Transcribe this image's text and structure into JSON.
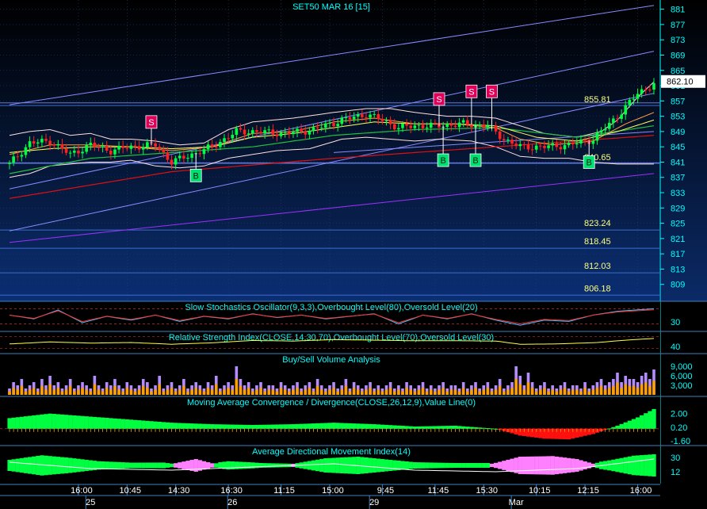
{
  "chart_data": {
    "type": "candlestick",
    "title": "SET50 MAR 16   [15]",
    "last_price": "862.10",
    "ylim": [
      805,
      883
    ],
    "y_ticks": [
      "881",
      "877",
      "873",
      "869",
      "865",
      "861",
      "857",
      "853",
      "849",
      "845",
      "841",
      "837",
      "833",
      "829",
      "825",
      "821",
      "817",
      "813",
      "809"
    ],
    "levels": [
      {
        "label": "855.81",
        "value": 855.81
      },
      {
        "label": "840.65",
        "value": 840.65
      },
      {
        "label": "823.24",
        "value": 823.24
      },
      {
        "label": "818.45",
        "value": 818.45
      },
      {
        "label": "812.03",
        "value": 812.03
      },
      {
        "label": "806.18",
        "value": 806.18
      }
    ],
    "signals": [
      {
        "type": "S",
        "bar": 35,
        "price": 851.5
      },
      {
        "type": "B",
        "bar": 46,
        "price": 837.5
      },
      {
        "type": "S",
        "bar": 106,
        "price": 857.5
      },
      {
        "type": "S",
        "bar": 114,
        "price": 859.5
      },
      {
        "type": "S",
        "bar": 119,
        "price": 859.5
      },
      {
        "type": "B",
        "bar": 107,
        "price": 841.5
      },
      {
        "type": "B",
        "bar": 115,
        "price": 841.5
      },
      {
        "type": "B",
        "bar": 143,
        "price": 841.0
      }
    ],
    "x_labels": [
      {
        "label": "16:00",
        "bar": 17
      },
      {
        "label": "10:45",
        "bar": 29
      },
      {
        "label": "14:30",
        "bar": 41
      },
      {
        "label": "16:30",
        "bar": 54
      },
      {
        "label": "11:15",
        "bar": 67
      },
      {
        "label": "15:00",
        "bar": 79
      },
      {
        "label": "9:45",
        "bar": 92
      },
      {
        "label": "11:45",
        "bar": 105
      },
      {
        "label": "15:30",
        "bar": 117
      },
      {
        "label": "10:15",
        "bar": 130
      },
      {
        "label": "12:15",
        "bar": 142
      },
      {
        "label": "16:00",
        "bar": 155
      }
    ],
    "date_labels": [
      {
        "label": "25",
        "bar": 20
      },
      {
        "label": "26",
        "bar": 55
      },
      {
        "label": "29",
        "bar": 90
      },
      {
        "label": "Mar",
        "bar": 125
      }
    ],
    "price_path": [
      [
        0,
        840.5
      ],
      [
        5,
        846
      ],
      [
        10,
        846.5
      ],
      [
        15,
        843
      ],
      [
        20,
        845.5
      ],
      [
        25,
        844
      ],
      [
        30,
        845
      ],
      [
        36,
        845.5
      ],
      [
        40,
        841
      ],
      [
        45,
        843
      ],
      [
        50,
        845
      ],
      [
        56,
        849
      ],
      [
        60,
        849
      ],
      [
        68,
        848.5
      ],
      [
        75,
        849.5
      ],
      [
        82,
        852
      ],
      [
        88,
        853.5
      ],
      [
        92,
        852
      ],
      [
        96,
        850
      ],
      [
        100,
        850.5
      ],
      [
        106,
        850.5
      ],
      [
        112,
        851
      ],
      [
        118,
        850.5
      ],
      [
        122,
        847
      ],
      [
        126,
        845
      ],
      [
        132,
        845
      ],
      [
        138,
        845.5
      ],
      [
        144,
        847
      ],
      [
        150,
        853
      ],
      [
        155,
        859
      ],
      [
        159,
        861.5
      ]
    ],
    "bands": {
      "upper_path": [
        [
          0,
          848
        ],
        [
          5,
          849
        ],
        [
          10,
          849.5
        ],
        [
          15,
          848
        ],
        [
          20,
          848.5
        ],
        [
          25,
          847
        ],
        [
          30,
          847
        ],
        [
          36,
          846.5
        ],
        [
          42,
          845.5
        ],
        [
          48,
          846
        ],
        [
          54,
          849.5
        ],
        [
          60,
          851.5
        ],
        [
          70,
          852.5
        ],
        [
          80,
          854
        ],
        [
          88,
          855
        ],
        [
          94,
          855
        ],
        [
          100,
          854
        ],
        [
          108,
          853
        ],
        [
          114,
          853
        ],
        [
          120,
          852.5
        ],
        [
          126,
          850.5
        ],
        [
          132,
          848.5
        ],
        [
          140,
          847.5
        ],
        [
          146,
          849
        ],
        [
          150,
          852
        ],
        [
          155,
          858
        ],
        [
          159,
          862
        ]
      ],
      "lower_path": [
        [
          0,
          837
        ],
        [
          5,
          838
        ],
        [
          10,
          840
        ],
        [
          15,
          840.5
        ],
        [
          20,
          841
        ],
        [
          25,
          841
        ],
        [
          30,
          841.5
        ],
        [
          36,
          840
        ],
        [
          42,
          839.5
        ],
        [
          48,
          840
        ],
        [
          54,
          842
        ],
        [
          60,
          843
        ],
        [
          66,
          844
        ],
        [
          74,
          844.5
        ],
        [
          82,
          847
        ],
        [
          88,
          847.5
        ],
        [
          94,
          847
        ],
        [
          100,
          846.5
        ],
        [
          106,
          847
        ],
        [
          114,
          846.5
        ],
        [
          120,
          845
        ],
        [
          126,
          842.5
        ],
        [
          132,
          842
        ],
        [
          138,
          842
        ],
        [
          144,
          841
        ],
        [
          150,
          840.5
        ],
        [
          155,
          840.5
        ],
        [
          159,
          840.5
        ]
      ]
    },
    "ma_fast": [
      [
        0,
        843
      ],
      [
        10,
        845.5
      ],
      [
        20,
        845.5
      ],
      [
        30,
        845
      ],
      [
        40,
        844
      ],
      [
        50,
        845
      ],
      [
        60,
        848.5
      ],
      [
        70,
        849
      ],
      [
        80,
        851.5
      ],
      [
        90,
        852.5
      ],
      [
        100,
        851
      ],
      [
        110,
        851
      ],
      [
        120,
        850
      ],
      [
        126,
        847
      ],
      [
        134,
        845.5
      ],
      [
        144,
        846.5
      ],
      [
        152,
        851
      ],
      [
        159,
        854
      ]
    ],
    "ma_mid": [
      [
        0,
        843.5
      ],
      [
        10,
        844.5
      ],
      [
        20,
        845
      ],
      [
        30,
        845
      ],
      [
        40,
        844.5
      ],
      [
        50,
        845
      ],
      [
        60,
        847.5
      ],
      [
        70,
        848.5
      ],
      [
        80,
        850
      ],
      [
        90,
        851.5
      ],
      [
        100,
        851
      ],
      [
        110,
        851
      ],
      [
        120,
        850.5
      ],
      [
        130,
        847.5
      ],
      [
        140,
        846.5
      ],
      [
        150,
        849
      ],
      [
        159,
        852
      ]
    ],
    "ma_slow": [
      [
        0,
        838
      ],
      [
        20,
        842
      ],
      [
        40,
        843.5
      ],
      [
        60,
        845
      ],
      [
        80,
        848
      ],
      [
        100,
        849.5
      ],
      [
        120,
        850
      ],
      [
        140,
        847.5
      ],
      [
        159,
        850.5
      ]
    ],
    "ma_red": [
      [
        0,
        831.5
      ],
      [
        40,
        838.5
      ],
      [
        80,
        842
      ],
      [
        120,
        845
      ],
      [
        159,
        848
      ]
    ],
    "trend_lines": [
      {
        "color": "#8a8aff",
        "from": [
          0,
          856
        ],
        "to": [
          159,
          882
        ]
      },
      {
        "color": "#8a8aff",
        "from": [
          0,
          834
        ],
        "to": [
          159,
          870
        ]
      },
      {
        "color": "#8a8aff",
        "from": [
          0,
          823
        ],
        "to": [
          159,
          859
        ]
      },
      {
        "color": "#8a8aff",
        "from": [
          80,
          843.5
        ],
        "to": [
          159,
          849
        ]
      },
      {
        "color": "#9b30ff",
        "from": [
          0,
          820
        ],
        "to": [
          159,
          838
        ]
      }
    ],
    "h_lines": [
      856.5,
      840.8
    ],
    "indicators": [
      {
        "title": "Slow Stochastics Oscillator(9,3,3),Overbought Level(80),Oversold Level(20)",
        "ticks": [
          "30"
        ]
      },
      {
        "title": "Relative Strength Index(CLOSE,14,30,70),Overbought Level(70),Oversold Level(30)",
        "ticks": [
          "40"
        ]
      },
      {
        "title": "Buy/Sell Volume Analysis",
        "ticks": [
          "9,000",
          "6,000",
          "3,000"
        ]
      },
      {
        "title": "Moving Average Convergence / Divergence(CLOSE,26,12,9),Value Line(0)",
        "ticks": [
          "2.00",
          "0.20",
          "-1.60"
        ]
      },
      {
        "title": "Average Directional Movement Index(14)",
        "ticks": [
          "30",
          "12"
        ]
      }
    ],
    "stoch_path": [
      [
        0,
        55
      ],
      [
        6,
        40
      ],
      [
        12,
        75
      ],
      [
        18,
        25
      ],
      [
        24,
        50
      ],
      [
        30,
        35
      ],
      [
        36,
        55
      ],
      [
        42,
        30
      ],
      [
        48,
        50
      ],
      [
        54,
        40
      ],
      [
        60,
        60
      ],
      [
        66,
        45
      ],
      [
        72,
        55
      ],
      [
        78,
        40
      ],
      [
        84,
        50
      ],
      [
        90,
        60
      ],
      [
        96,
        20
      ],
      [
        102,
        55
      ],
      [
        108,
        40
      ],
      [
        114,
        60
      ],
      [
        120,
        35
      ],
      [
        126,
        15
      ],
      [
        132,
        35
      ],
      [
        138,
        30
      ],
      [
        144,
        55
      ],
      [
        150,
        70
      ],
      [
        159,
        80
      ]
    ],
    "rsi_path": [
      [
        0,
        45
      ],
      [
        10,
        52
      ],
      [
        20,
        48
      ],
      [
        30,
        50
      ],
      [
        40,
        44
      ],
      [
        50,
        49
      ],
      [
        60,
        57
      ],
      [
        70,
        55
      ],
      [
        80,
        60
      ],
      [
        90,
        58
      ],
      [
        100,
        56
      ],
      [
        110,
        56
      ],
      [
        120,
        55
      ],
      [
        126,
        44
      ],
      [
        135,
        45
      ],
      [
        145,
        50
      ],
      [
        152,
        58
      ],
      [
        159,
        64
      ]
    ],
    "volume": [
      2,
      4,
      3,
      5,
      2,
      3,
      4,
      2,
      5,
      3,
      6,
      3,
      4,
      2,
      3,
      5,
      2,
      3,
      4,
      3,
      2,
      6,
      3,
      2,
      4,
      3,
      5,
      3,
      2,
      4,
      3,
      2,
      3,
      5,
      4,
      2,
      3,
      6,
      2,
      3,
      4,
      2,
      3,
      5,
      2,
      3,
      4,
      3,
      2,
      4,
      3,
      6,
      2,
      3,
      4,
      3,
      9,
      5,
      3,
      4,
      2,
      3,
      4,
      2,
      3,
      3,
      2,
      4,
      3,
      2,
      3,
      4,
      2,
      3,
      4,
      2,
      5,
      3,
      2,
      3,
      4,
      2,
      3,
      5,
      2,
      4,
      3,
      2,
      3,
      4,
      2,
      3,
      2,
      3,
      4,
      2,
      3,
      2,
      4,
      3,
      2,
      3,
      4,
      2,
      3,
      2,
      3,
      4,
      2,
      3,
      3,
      2,
      4,
      2,
      3,
      4,
      2,
      3,
      4,
      2,
      3,
      5,
      2,
      3,
      4,
      9,
      6,
      3,
      7,
      4,
      2,
      3,
      4,
      2,
      3,
      2,
      3,
      4,
      2,
      3,
      3,
      2,
      4,
      2,
      3,
      4,
      5,
      3,
      4,
      5,
      7,
      4,
      6,
      5,
      5,
      4,
      6,
      7,
      5,
      8
    ],
    "macd": [
      [
        0,
        1.4
      ],
      [
        10,
        2.0
      ],
      [
        20,
        1.6
      ],
      [
        30,
        1.2
      ],
      [
        40,
        0.8
      ],
      [
        50,
        0.6
      ],
      [
        60,
        0.5
      ],
      [
        70,
        0.6
      ],
      [
        80,
        0.8
      ],
      [
        90,
        0.6
      ],
      [
        100,
        0.3
      ],
      [
        110,
        0.4
      ],
      [
        120,
        0.0
      ],
      [
        126,
        -0.9
      ],
      [
        132,
        -1.3
      ],
      [
        138,
        -1.4
      ],
      [
        144,
        -0.7
      ],
      [
        150,
        0.4
      ],
      [
        155,
        1.5
      ],
      [
        159,
        2.6
      ]
    ],
    "adx_green": [
      [
        0,
        20
      ],
      [
        8,
        32
      ],
      [
        15,
        26
      ],
      [
        22,
        18
      ],
      [
        30,
        15
      ],
      [
        38,
        20
      ],
      [
        46,
        14
      ],
      [
        54,
        22
      ],
      [
        62,
        16
      ],
      [
        70,
        14
      ],
      [
        78,
        28
      ],
      [
        86,
        32
      ],
      [
        92,
        26
      ],
      [
        100,
        18
      ],
      [
        110,
        20
      ],
      [
        120,
        15
      ],
      [
        126,
        10
      ],
      [
        132,
        12
      ],
      [
        140,
        14
      ],
      [
        148,
        24
      ],
      [
        154,
        34
      ],
      [
        159,
        36
      ]
    ],
    "adx_pink": [
      [
        0,
        10
      ],
      [
        30,
        12
      ],
      [
        40,
        18
      ],
      [
        46,
        26
      ],
      [
        52,
        16
      ],
      [
        60,
        14
      ],
      [
        100,
        14
      ],
      [
        110,
        18
      ],
      [
        118,
        14
      ],
      [
        126,
        28
      ],
      [
        134,
        32
      ],
      [
        140,
        26
      ],
      [
        146,
        16
      ],
      [
        159,
        12
      ]
    ],
    "adx_line": [
      [
        0,
        24
      ],
      [
        20,
        16
      ],
      [
        40,
        14
      ],
      [
        60,
        18
      ],
      [
        80,
        22
      ],
      [
        100,
        14
      ],
      [
        120,
        12
      ],
      [
        140,
        16
      ],
      [
        159,
        28
      ]
    ]
  },
  "colors": {
    "bg_top": "#000000",
    "bg_bottom": "#0b2a66",
    "up": "#00ff40",
    "down": "#ff2020",
    "text": "#00ffff",
    "level_text": "#ffff80",
    "buy": "#00e070",
    "sell": "#e0005a",
    "grid": "#1c3a6e",
    "volume_buy": "#ffa000",
    "volume_sell": "#b48cff"
  }
}
